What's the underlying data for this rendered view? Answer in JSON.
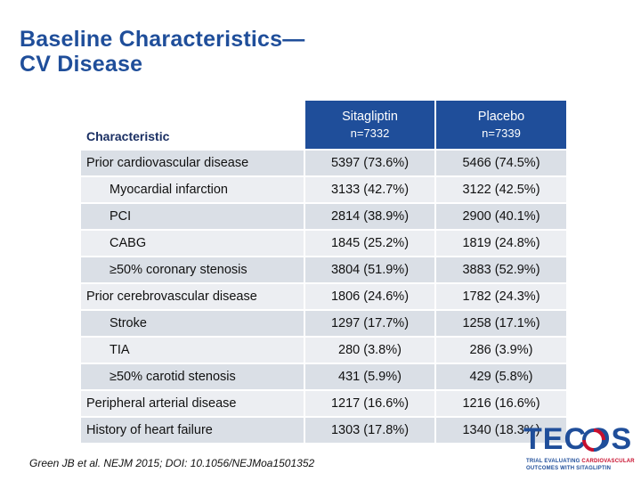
{
  "slide": {
    "title_line1": "Baseline Characteristics—",
    "title_line2": "CV Disease"
  },
  "table": {
    "headers": {
      "characteristic": "Characteristic",
      "sitagliptin": "Sitagliptin",
      "sitagliptin_n": "n=7332",
      "placebo": "Placebo",
      "placebo_n": "n=7339"
    },
    "rows": [
      {
        "label": "Prior cardiovascular disease",
        "sitagliptin": "5397 (73.6%)",
        "placebo": "5466 (74.5%)"
      },
      {
        "label": "Myocardial infarction",
        "sitagliptin": "3133 (42.7%)",
        "placebo": "3122 (42.5%)"
      },
      {
        "label": "PCI",
        "sitagliptin": "2814 (38.9%)",
        "placebo": "2900 (40.1%)"
      },
      {
        "label": "CABG",
        "sitagliptin": "1845 (25.2%)",
        "placebo": "1819 (24.8%)"
      },
      {
        "label": "≥50% coronary stenosis",
        "sitagliptin": "3804 (51.9%)",
        "placebo": "3883 (52.9%)"
      },
      {
        "label": "Prior cerebrovascular disease",
        "sitagliptin": "1806 (24.6%)",
        "placebo": "1782 (24.3%)"
      },
      {
        "label": "Stroke",
        "sitagliptin": "1297 (17.7%)",
        "placebo": "1258 (17.1%)"
      },
      {
        "label": "TIA",
        "sitagliptin": "280 (3.8%)",
        "placebo": "286 (3.9%)"
      },
      {
        "label": "≥50% carotid stenosis",
        "sitagliptin": "431 (5.9%)",
        "placebo": "429 (5.8%)"
      },
      {
        "label": "Peripheral arterial disease",
        "sitagliptin": "1217 (16.6%)",
        "placebo": "1216 (16.6%)"
      },
      {
        "label": "History of heart failure",
        "sitagliptin": "1303 (17.8%)",
        "placebo": "1340 (18.3%)"
      }
    ]
  },
  "citation": "Green JB et al. NEJM 2015; DOI: 10.1056/NEJMoa1501352",
  "logo": {
    "name": "TECOS",
    "tagline_part1": "TRIAL EVALUATING ",
    "tagline_part2": "CARDIOVASCULAR",
    "tagline_line2": "OUTCOMES WITH SITAGLIPTIN"
  },
  "colors": {
    "title": "#1f4e9a",
    "header_bg": "#1f4e9a",
    "row_dark": "#dadfe6",
    "row_light": "#eceef2",
    "logo_red": "#c8102e"
  }
}
